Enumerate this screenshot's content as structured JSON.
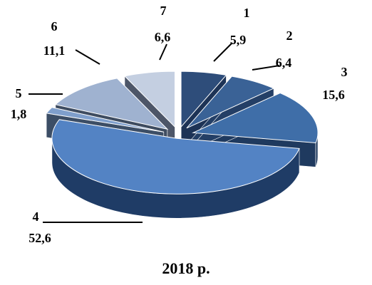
{
  "chart_data": {
    "type": "pie",
    "title": "",
    "caption": "2018 р.",
    "slices": [
      {
        "label": "1",
        "value": 5.9,
        "value_text": "5,9",
        "color": "#2e4d7a",
        "side": "#1d3356"
      },
      {
        "label": "2",
        "value": 6.4,
        "value_text": "6,4",
        "color": "#3a6296",
        "side": "#243f66"
      },
      {
        "label": "3",
        "value": 15.6,
        "value_text": "15,6",
        "color": "#3f6ea8",
        "side": "#1f3a5f"
      },
      {
        "label": "4",
        "value": 52.6,
        "value_text": "52,6",
        "color": "#5383c4",
        "side": "#1f3c66"
      },
      {
        "label": "5",
        "value": 1.8,
        "value_text": "1,8",
        "color": "#7f9fcc",
        "side": "#3c4e66"
      },
      {
        "label": "6",
        "value": 11.1,
        "value_text": "11,1",
        "color": "#9fb2d0",
        "side": "#3e4c60"
      },
      {
        "label": "7",
        "value": 6.6,
        "value_text": "6,6",
        "color": "#c4cfe1",
        "side": "#4d5668"
      }
    ],
    "labels_position": "outside with leader lines",
    "exploded": true,
    "three_d": true
  }
}
